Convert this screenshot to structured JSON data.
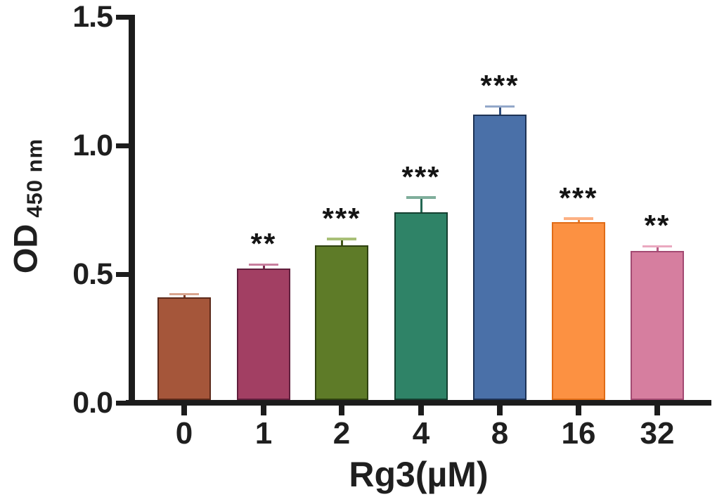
{
  "figure": {
    "background": "#ffffff",
    "axis_color": "#1c1c1c",
    "text_color": "#1f1f1f"
  },
  "chart_data": {
    "type": "bar",
    "title": "",
    "xlabel": "Rg3(µM)",
    "ylabel": "OD",
    "ylabel_subscript": "450 nm",
    "categories": [
      "0",
      "1",
      "2",
      "4",
      "8",
      "16",
      "32"
    ],
    "values": [
      0.4,
      0.51,
      0.6,
      0.73,
      1.11,
      0.69,
      0.58
    ],
    "errors": [
      0.012,
      0.017,
      0.026,
      0.057,
      0.032,
      0.016,
      0.017
    ],
    "significance": [
      "",
      "**",
      "***",
      "***",
      "***",
      "***",
      "**"
    ],
    "bar_colors": [
      "#a5563a",
      "#a23f63",
      "#5e7b28",
      "#2f8367",
      "#4a70a8",
      "#fc9142",
      "#d67e9f"
    ],
    "bar_border_colors": [
      "#5d2a1a",
      "#611f3d",
      "#2f4210",
      "#153f30",
      "#1e3355",
      "#e06c17",
      "#a34a72"
    ],
    "error_cap_colors": [
      "#d9a58e",
      "#c87e9e",
      "#a8bf77",
      "#7fae9b",
      "#93a8c9",
      "#fdb183",
      "#eaa9c0"
    ],
    "error_stem_colors": [
      "#7a3a26",
      "#7a2c4e",
      "#42581a",
      "#246853",
      "#2f4d7d",
      "#e8823a",
      "#b85c85"
    ],
    "y_ticks": [
      "0.0",
      "0.5",
      "1.0",
      "1.5"
    ],
    "y_tick_values": [
      0,
      0.5,
      1.0,
      1.5
    ],
    "ylim": [
      0,
      1.5
    ],
    "grid": false,
    "legend": "none"
  }
}
